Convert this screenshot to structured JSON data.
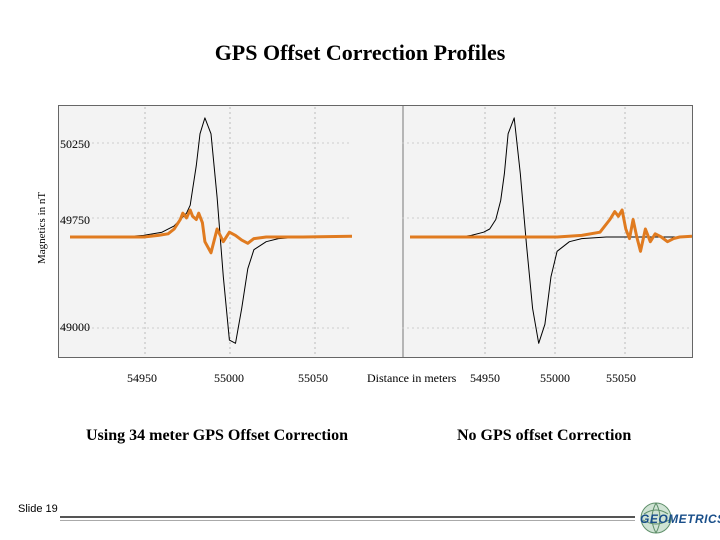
{
  "page": {
    "title": "GPS Offset Correction Profiles",
    "slide_label": "Slide 19",
    "logo_text": "GEOMETRICS"
  },
  "chart_data": [
    {
      "type": "line",
      "title": "",
      "xlabel": "Distance in meters",
      "ylabel": "Magnetics in nT",
      "caption": "Using 34 meter GPS Offset Correction",
      "yticks": [
        "50250",
        "49750",
        "49000"
      ],
      "xticks": [
        "54950",
        "55000",
        "55050"
      ],
      "xlim": [
        54870,
        55100
      ],
      "ylim": [
        48900,
        50450
      ],
      "series": [
        {
          "color": "#000000",
          "x": [
            54870,
            54910,
            54930,
            54945,
            54955,
            54960,
            54965,
            54968,
            54970,
            54973,
            54976,
            54980,
            54985,
            54990,
            54995,
            55000,
            55005,
            55010,
            55015,
            55020,
            55030,
            55040,
            55060,
            55100
          ],
          "y": [
            49650,
            49650,
            49660,
            49680,
            49720,
            49760,
            49800,
            49850,
            49950,
            50100,
            50300,
            50400,
            50300,
            49900,
            49400,
            49000,
            48980,
            49200,
            49450,
            49570,
            49620,
            49640,
            49650,
            49650
          ]
        },
        {
          "color": "#e07b20",
          "x": [
            54870,
            54910,
            54930,
            54942,
            54950,
            54955,
            54960,
            54962,
            54965,
            54968,
            54970,
            54973,
            54975,
            54978,
            54980,
            54985,
            54990,
            54995,
            55000,
            55005,
            55010,
            55015,
            55020,
            55030,
            55040,
            55060,
            55100
          ],
          "y": [
            49650,
            49650,
            49650,
            49660,
            49670,
            49700,
            49760,
            49800,
            49770,
            49820,
            49780,
            49760,
            49800,
            49740,
            49620,
            49550,
            49700,
            49620,
            49680,
            49660,
            49630,
            49610,
            49640,
            49650,
            49650,
            49650,
            49655
          ]
        }
      ]
    },
    {
      "type": "line",
      "title": "",
      "xlabel": "",
      "ylabel": "",
      "caption": "No GPS offset Correction",
      "xticks": [
        "54950",
        "55000",
        "55050"
      ],
      "xlim": [
        54870,
        55100
      ],
      "ylim": [
        48900,
        50450
      ],
      "series": [
        {
          "color": "#000000",
          "x": [
            54870,
            54910,
            54920,
            54930,
            54935,
            54940,
            54944,
            54947,
            54950,
            54955,
            54960,
            54965,
            54970,
            54975,
            54980,
            54985,
            54990,
            55000,
            55010,
            55030,
            55060,
            55100
          ],
          "y": [
            49650,
            49650,
            49660,
            49680,
            49700,
            49760,
            49880,
            50050,
            50300,
            50400,
            50050,
            49600,
            49200,
            48980,
            49100,
            49400,
            49560,
            49620,
            49640,
            49650,
            49650,
            49650
          ]
        },
        {
          "color": "#e07b20",
          "x": [
            54870,
            54990,
            55010,
            55025,
            55033,
            55037,
            55040,
            55043,
            55046,
            55049,
            55052,
            55055,
            55058,
            55062,
            55066,
            55070,
            55075,
            55080,
            55085,
            55090,
            55100
          ],
          "y": [
            49650,
            49650,
            49660,
            49680,
            49760,
            49810,
            49780,
            49820,
            49700,
            49640,
            49760,
            49650,
            49560,
            49700,
            49620,
            49670,
            49650,
            49620,
            49640,
            49650,
            49655
          ]
        }
      ]
    }
  ]
}
